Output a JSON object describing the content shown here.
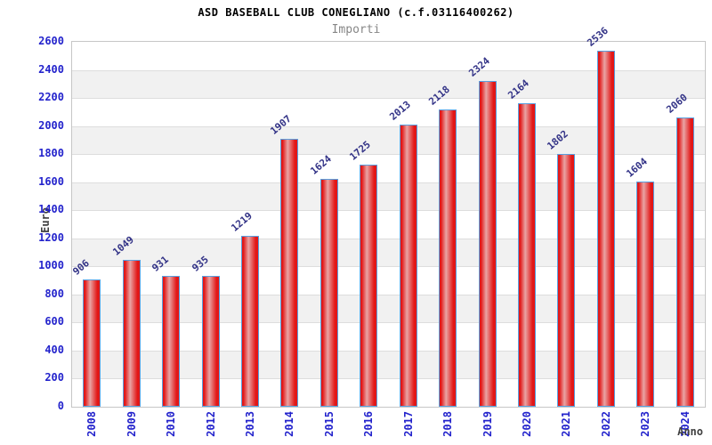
{
  "chart_data": {
    "type": "bar",
    "title": "ASD BASEBALL CLUB CONEGLIANO (c.f.03116400262)",
    "subtitle": "Importi",
    "xlabel": "Anno",
    "ylabel": "Euro",
    "categories": [
      "2008",
      "2009",
      "2010",
      "2012",
      "2013",
      "2014",
      "2015",
      "2016",
      "2017",
      "2018",
      "2019",
      "2020",
      "2021",
      "2022",
      "2023",
      "2024"
    ],
    "values": [
      906,
      1049,
      931,
      935,
      1219,
      1907,
      1624,
      1725,
      2013,
      2118,
      2324,
      2164,
      1802,
      2536,
      1604,
      2060
    ],
    "ylim": [
      0,
      2600
    ],
    "ytick_step": 200,
    "grid": true,
    "legend_position": "none",
    "value_labels_rotation_deg": -40,
    "x_labels_rotation_deg": -90,
    "colors": {
      "bar_red": "#e21717",
      "bar_highlight": "#e9a4a4",
      "bar_border": "#58a0e0",
      "tick_label": "#2323cc",
      "value_label": "#333387",
      "axis_title": "#3f3f3f",
      "title": "#000000",
      "subtitle": "#878787",
      "band": "#f1f1f1",
      "gridline": "#dddddd",
      "plot_border": "#c6c6c6"
    }
  }
}
